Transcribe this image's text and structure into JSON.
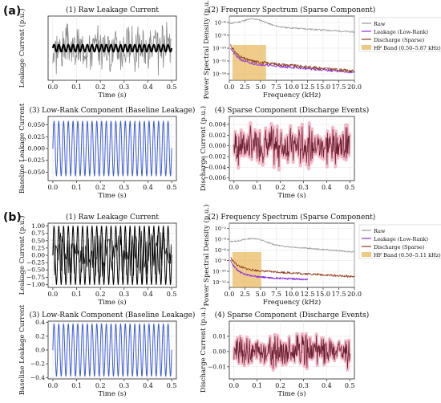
{
  "figure": {
    "part_labels": [
      "(a)",
      "(b)"
    ]
  },
  "chart_data": [
    {
      "part": "(a)",
      "type": "line",
      "title": "(1) Raw Leakage Current",
      "xlabel": "Time (s)",
      "ylabel": "Leakage Current (p.u.)",
      "xlim": [
        -0.02,
        0.52
      ],
      "ylim": [
        -0.9,
        0.9
      ],
      "xticks": [
        "0.0",
        "0.1",
        "0.2",
        "0.3",
        "0.4",
        "0.5"
      ],
      "xtick_values": [
        0,
        0.1,
        0.2,
        0.3,
        0.4,
        0.5
      ],
      "yticks": [],
      "ytick_values": [],
      "grid": true,
      "series": [
        {
          "kind": "noise",
          "color": "#8a8a8a",
          "amp": 0.8,
          "seed": 3,
          "n": 240,
          "x_range": [
            0,
            0.5
          ]
        },
        {
          "kind": "sine",
          "color": "#000000",
          "amp": 0.1,
          "cycles": 25,
          "x_range": [
            0,
            0.5
          ],
          "width": 2
        }
      ]
    },
    {
      "part": "(a)",
      "type": "line",
      "title": "(2) Frequency Spectrum (Sparse Component)",
      "xlabel": "Frequency (kHz)",
      "ylabel": "Power Spectral Density (p.u.)",
      "xlim": [
        0,
        20
      ],
      "ylim": [
        -15,
        -5
      ],
      "xticks": [
        "0.0",
        "2.5",
        "5.0",
        "7.5",
        "10.0",
        "12.5",
        "15.0",
        "17.5",
        "20.0"
      ],
      "xtick_values": [
        0,
        2.5,
        5,
        7.5,
        10,
        12.5,
        15,
        17.5,
        20
      ],
      "yticks": [
        "10⁻⁶",
        "10⁻⁸",
        "10⁻¹⁰",
        "10⁻¹²",
        "10⁻¹⁴"
      ],
      "ytick_values": [
        -6,
        -8,
        -10,
        -12,
        -14
      ],
      "log_y": true,
      "grid": true,
      "band": {
        "x0": 0.5,
        "x1": 5.87,
        "color": "#e8b04c"
      },
      "legend_position": "top-right",
      "legend": [
        "Raw",
        "Leakage (Low-Rank)",
        "Discharge (Sparse)",
        "HF Band (0.50–5.87 kHz)"
      ],
      "legend_colors": [
        "#999999",
        "#8a2be2",
        "#8b3a1a",
        "#e8b04c"
      ],
      "series": [
        {
          "kind": "spectrum",
          "color": "#999999",
          "start": -6.2,
          "end": -7.5,
          "hump": 1.0,
          "jitter": 0.25,
          "seed": 11
        },
        {
          "kind": "decay",
          "color": "#8a2be2",
          "start": -9.5,
          "mid": -12.2,
          "end": -13.8,
          "jitter": 0.35,
          "seed": 21,
          "x_range": [
            0.2,
            20
          ]
        },
        {
          "kind": "decay",
          "color": "#8b3a1a",
          "start": -9.0,
          "mid": -11.8,
          "end": -13.6,
          "jitter": 0.45,
          "seed": 31,
          "x_range": [
            0.2,
            20
          ]
        }
      ]
    },
    {
      "part": "(a)",
      "type": "line",
      "title": "(3) Low-Rank Component (Baseline Leakage)",
      "xlabel": "Time (s)",
      "ylabel": "Baseline Leakage Current",
      "xlim": [
        -0.02,
        0.52
      ],
      "ylim": [
        -0.068,
        0.068
      ],
      "xticks": [
        "0.0",
        "0.1",
        "0.2",
        "0.3",
        "0.4",
        "0.5"
      ],
      "xtick_values": [
        0,
        0.1,
        0.2,
        0.3,
        0.4,
        0.5
      ],
      "yticks": [
        "0.050",
        "0.025",
        "0.000",
        "−0.025",
        "−0.050"
      ],
      "ytick_values": [
        0.05,
        0.025,
        0,
        -0.025,
        -0.05
      ],
      "grid": true,
      "series": [
        {
          "kind": "sine",
          "color": "#3b5bdb",
          "amp": 0.058,
          "cycles": 25,
          "x_range": [
            0,
            0.5
          ],
          "width": 1
        }
      ]
    },
    {
      "part": "(a)",
      "type": "line",
      "title": "(4) Sparse Component (Discharge Events)",
      "xlabel": "Time (s)",
      "ylabel": "Discharge Current (p.u.)",
      "xlim": [
        -0.02,
        0.52
      ],
      "ylim": [
        -0.0065,
        0.0055
      ],
      "xticks": [
        "0.0",
        "0.1",
        "0.2",
        "0.3",
        "0.4",
        "0.5"
      ],
      "xtick_values": [
        0,
        0.1,
        0.2,
        0.3,
        0.4,
        0.5
      ],
      "yticks": [
        "0.004",
        "0.002",
        "0.000",
        "−0.002",
        "−0.004",
        "−0.006"
      ],
      "ytick_values": [
        0.004,
        0.002,
        0,
        -0.002,
        -0.004,
        -0.006
      ],
      "grid": true,
      "series": [
        {
          "kind": "noise",
          "color": "#f4a5b8",
          "amp": 0.0048,
          "seed": 7,
          "n": 260,
          "x_range": [
            0,
            0.5
          ],
          "width": 4
        },
        {
          "kind": "noise",
          "color": "#6b2030",
          "amp": 0.0042,
          "seed": 7,
          "n": 260,
          "x_range": [
            0,
            0.5
          ],
          "width": 0.8
        }
      ]
    },
    {
      "part": "(b)",
      "type": "line",
      "title": "(1) Raw Leakage Current",
      "xlabel": "Time (s)",
      "ylabel": "Leakage Current (p.u.)",
      "xlim": [
        -0.02,
        0.52
      ],
      "ylim": [
        -1.1,
        1.1
      ],
      "xticks": [
        "0.0",
        "0.1",
        "0.2",
        "0.3",
        "0.4",
        "0.5"
      ],
      "xtick_values": [
        0,
        0.1,
        0.2,
        0.3,
        0.4,
        0.5
      ],
      "yticks": [
        "1.00",
        "0.75",
        "0.50",
        "0.25",
        "0.00",
        "−0.25",
        "−0.50",
        "−0.75",
        "−1.00"
      ],
      "ytick_values": [
        1,
        0.75,
        0.5,
        0.25,
        0,
        -0.25,
        -0.5,
        -0.75,
        -1
      ],
      "grid": true,
      "series": [
        {
          "kind": "sine",
          "color": "#000000",
          "amp": 1.0,
          "cycles": 25,
          "x_range": [
            0,
            0.5
          ],
          "width": 1
        },
        {
          "kind": "noise",
          "color": "#000000",
          "amp": 1.0,
          "seed": 5,
          "n": 200,
          "x_range": [
            0,
            0.5
          ],
          "width": 0.6
        }
      ]
    },
    {
      "part": "(b)",
      "type": "line",
      "title": "(2) Frequency Spectrum (Sparse Component)",
      "xlabel": "Frequency (kHz)",
      "ylabel": "Power Spectral Density (p.u.)",
      "xlim": [
        0,
        20
      ],
      "ylim": [
        -13,
        -1
      ],
      "xticks": [
        "0.0",
        "2.5",
        "5.0",
        "7.5",
        "10.0",
        "12.5",
        "15.0",
        "17.5",
        "20.0"
      ],
      "xtick_values": [
        0,
        2.5,
        5,
        7.5,
        10,
        12.5,
        15,
        17.5,
        20
      ],
      "yticks": [
        "10⁻²",
        "10⁻⁴",
        "10⁻⁶",
        "10⁻⁸",
        "10⁻¹⁰",
        "10⁻¹²"
      ],
      "ytick_values": [
        -2,
        -4,
        -6,
        -8,
        -10,
        -12
      ],
      "log_y": true,
      "grid": true,
      "band": {
        "x0": 0.5,
        "x1": 5.11,
        "color": "#e8b04c"
      },
      "legend_position": "top-right",
      "legend": [
        "Raw",
        "Leakage (Low-Rank)",
        "Discharge (Sparse)",
        "HF Band (0.50–5.11 kHz)"
      ],
      "legend_colors": [
        "#999999",
        "#8a2be2",
        "#8b3a1a",
        "#e8b04c"
      ],
      "series": [
        {
          "kind": "spectrum",
          "color": "#999999",
          "start": -4.5,
          "end": -6.4,
          "hump": 1.0,
          "jitter": 0.25,
          "seed": 13
        },
        {
          "kind": "decay",
          "color": "#8a2be2",
          "start": -7.5,
          "mid": -10.8,
          "end": -12.0,
          "jitter": 0.35,
          "seed": 23,
          "x_range": [
            0.2,
            12.5
          ]
        },
        {
          "kind": "decay",
          "color": "#8b3a1a",
          "start": -7.0,
          "mid": -9.6,
          "end": -11.0,
          "jitter": 0.4,
          "seed": 33,
          "x_range": [
            0.2,
            20
          ]
        }
      ]
    },
    {
      "part": "(b)",
      "type": "line",
      "title": "(3) Low-Rank Component (Baseline Leakage)",
      "xlabel": "Time (s)",
      "ylabel": "Baseline Leakage Current",
      "xlim": [
        -0.02,
        0.52
      ],
      "ylim": [
        -0.42,
        0.42
      ],
      "xticks": [
        "0.0",
        "0.1",
        "0.2",
        "0.3",
        "0.4",
        "0.5"
      ],
      "xtick_values": [
        0,
        0.1,
        0.2,
        0.3,
        0.4,
        0.5
      ],
      "yticks": [
        "0.4",
        "0.2",
        "0.0",
        "−0.2",
        "−0.4"
      ],
      "ytick_values": [
        0.4,
        0.2,
        0,
        -0.2,
        -0.4
      ],
      "grid": true,
      "series": [
        {
          "kind": "sine",
          "color": "#3b5bdb",
          "amp": 0.38,
          "cycles": 25,
          "x_range": [
            0,
            0.5
          ],
          "width": 1
        }
      ]
    },
    {
      "part": "(b)",
      "type": "line",
      "title": "(4) Sparse Component (Discharge Events)",
      "xlabel": "Time (s)",
      "ylabel": "Discharge Current (p.u.)",
      "xlim": [
        -0.02,
        0.52
      ],
      "ylim": [
        -0.018,
        0.02
      ],
      "xticks": [
        "0.0",
        "0.1",
        "0.2",
        "0.3",
        "0.4",
        "0.5"
      ],
      "xtick_values": [
        0,
        0.1,
        0.2,
        0.3,
        0.4,
        0.5
      ],
      "yticks": [
        "0.01",
        "0.00",
        "−0.01"
      ],
      "ytick_values": [
        0.01,
        0,
        -0.01
      ],
      "grid": true,
      "series": [
        {
          "kind": "noise",
          "color": "#f4a5b8",
          "amp": 0.013,
          "seed": 9,
          "n": 260,
          "x_range": [
            0,
            0.5
          ],
          "width": 4
        },
        {
          "kind": "noise",
          "color": "#6b2030",
          "amp": 0.012,
          "seed": 9,
          "n": 260,
          "x_range": [
            0,
            0.5
          ],
          "width": 0.8
        }
      ]
    }
  ]
}
